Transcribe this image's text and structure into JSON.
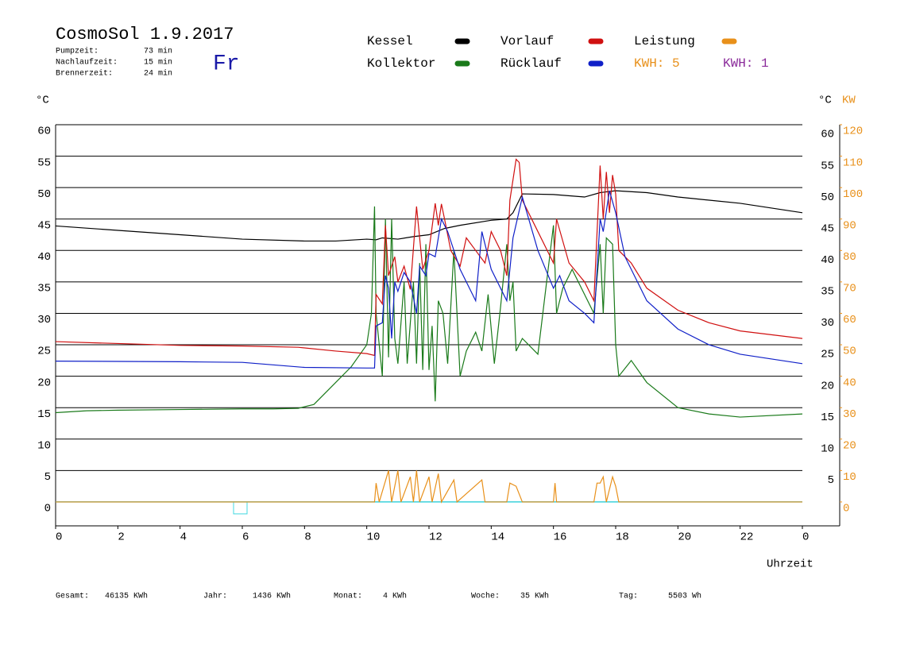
{
  "chart_data": {
    "type": "line",
    "title": "CosmoSol 1.9.2017",
    "weekday": "Fr",
    "info": [
      {
        "label": "Pumpzeit:",
        "value": "73 min"
      },
      {
        "label": "Nachlaufzeit:",
        "value": "15 min"
      },
      {
        "label": "Brennerzeit:",
        "value": "24 min"
      }
    ],
    "ylabel": "°C",
    "y2label": "KW",
    "xlabel": "Uhrzeit",
    "kwh_labels": [
      {
        "text": "KWH: 5",
        "color": "#e8901a"
      },
      {
        "text": "KWH: 1",
        "color": "#8a2a9a"
      }
    ],
    "xlim": [
      0,
      25.2
    ],
    "ylim": [
      -3.8,
      60
    ],
    "y2lim": [
      -7.6,
      120
    ],
    "xticks": [
      0,
      2,
      4,
      6,
      8,
      10,
      12,
      14,
      16,
      18,
      20,
      22,
      {
        "value": 24,
        "label": "0"
      }
    ],
    "yticks": [
      0,
      5,
      10,
      15,
      20,
      25,
      30,
      35,
      40,
      45,
      50,
      55,
      60
    ],
    "y2ticks": [
      0,
      10,
      20,
      30,
      40,
      50,
      60,
      70,
      80,
      90,
      100,
      110,
      120
    ],
    "grid": true,
    "series": [
      {
        "name": "Kessel",
        "color": "#000000",
        "x": [
          0,
          2,
          4,
          6,
          8,
          9,
          10,
          10.3,
          10.5,
          11,
          11.5,
          12,
          12.5,
          13,
          14,
          14.5,
          14.7,
          15,
          16,
          17,
          17.5,
          18,
          19,
          20,
          22,
          24
        ],
        "values": [
          43.9,
          43.2,
          42.5,
          41.8,
          41.5,
          41.5,
          41.8,
          41.7,
          42.0,
          41.8,
          42.2,
          42.5,
          43.5,
          44.0,
          44.8,
          45.0,
          46.0,
          49.0,
          48.9,
          48.5,
          49.2,
          49.5,
          49.2,
          48.5,
          47.5,
          46.0
        ]
      },
      {
        "name": "Kollektor",
        "color": "#1a7a1a",
        "x": [
          0,
          1,
          2,
          4,
          6,
          7,
          7.8,
          8.3,
          9,
          9.5,
          10,
          10.15,
          10.25,
          10.3,
          10.5,
          10.6,
          10.7,
          10.8,
          10.9,
          11.0,
          11.2,
          11.3,
          11.5,
          11.6,
          11.7,
          11.8,
          11.9,
          12.0,
          12.1,
          12.2,
          12.3,
          12.45,
          12.6,
          12.8,
          13,
          13.2,
          13.5,
          13.7,
          13.9,
          14.1,
          14.3,
          14.5,
          14.6,
          14.7,
          14.8,
          15,
          15.5,
          16,
          16.1,
          16.3,
          16.6,
          17,
          17.3,
          17.5,
          17.6,
          17.7,
          17.9,
          18,
          18.1,
          18.5,
          19,
          20,
          21,
          22,
          24
        ],
        "values": [
          14.2,
          14.5,
          14.6,
          14.7,
          14.8,
          14.8,
          14.9,
          15.5,
          19,
          21.5,
          25,
          30,
          47,
          30,
          20,
          45,
          23,
          45,
          26,
          22,
          35,
          22,
          35,
          22,
          38,
          21,
          41,
          21,
          28,
          16,
          32,
          30,
          22,
          40,
          20,
          24,
          27,
          24,
          33,
          22,
          31,
          41,
          32,
          35,
          24,
          26,
          23.5,
          44,
          30,
          34,
          37,
          33,
          30,
          41,
          30,
          42,
          41,
          25,
          20,
          22.5,
          19,
          15,
          14,
          13.5,
          14.0
        ]
      },
      {
        "name": "Vorlauf",
        "color": "#d01010",
        "x": [
          0,
          2,
          4,
          6,
          7.8,
          9,
          10,
          10.25,
          10.3,
          10.5,
          10.6,
          10.7,
          10.9,
          11,
          11.2,
          11.4,
          11.6,
          11.8,
          12,
          12.2,
          12.3,
          12.4,
          12.5,
          12.7,
          13,
          13.2,
          13.5,
          13.8,
          14,
          14.3,
          14.5,
          14.6,
          14.8,
          14.9,
          15,
          15.5,
          16,
          16.1,
          16.5,
          17,
          17.3,
          17.5,
          17.6,
          17.7,
          17.8,
          17.9,
          18,
          18.1,
          18.5,
          19,
          20,
          21,
          22,
          24
        ],
        "values": [
          25.5,
          25.2,
          24.9,
          24.8,
          24.6,
          24.0,
          23.6,
          23.3,
          33.0,
          31.5,
          44.0,
          36,
          39,
          35,
          37.5,
          33.8,
          47,
          37,
          40,
          47.5,
          44,
          47.4,
          45,
          40,
          37.5,
          42,
          40,
          38,
          43,
          40,
          36,
          48,
          54.5,
          54,
          48,
          43,
          38,
          45,
          38,
          35,
          32,
          53.5,
          45,
          52.5,
          46,
          52,
          49,
          40,
          38,
          34,
          30.5,
          28.5,
          27.2,
          26.0
        ]
      },
      {
        "name": "Rücklauf",
        "color": "#1020c8",
        "x": [
          0,
          4,
          6,
          8,
          10,
          10.25,
          10.3,
          10.5,
          10.6,
          10.7,
          10.8,
          10.9,
          11,
          11.2,
          11.4,
          11.6,
          11.7,
          11.9,
          12,
          12.2,
          12.4,
          12.6,
          13,
          13.5,
          13.7,
          14,
          14.5,
          14.7,
          15,
          15.5,
          16,
          16.2,
          16.5,
          17,
          17.3,
          17.5,
          17.6,
          17.8,
          18,
          18.3,
          19,
          20,
          21,
          22,
          24
        ],
        "values": [
          22.4,
          22.3,
          22.2,
          21.4,
          21.3,
          21.3,
          28.0,
          28.5,
          36,
          34,
          26,
          35,
          33.5,
          36.5,
          35,
          30,
          37.5,
          36,
          39.5,
          39,
          45,
          43,
          37,
          32,
          43,
          37,
          32,
          42,
          48.5,
          40,
          34,
          36,
          32,
          30,
          28.5,
          45,
          43,
          49.5,
          46,
          39,
          32,
          27.5,
          25.0,
          23.5,
          22.0
        ]
      },
      {
        "name": "Leistung",
        "color": "#e8901a",
        "axis": "y2",
        "x": [
          0,
          9,
          10.25,
          10.3,
          10.4,
          10.7,
          10.8,
          11,
          11.1,
          11.4,
          11.5,
          11.6,
          11.7,
          12,
          12.1,
          12.3,
          12.4,
          12.8,
          12.9,
          13.7,
          13.8,
          14.5,
          14.6,
          14.8,
          15,
          16,
          16.05,
          16.1,
          17.3,
          17.4,
          17.5,
          17.6,
          17.7,
          17.9,
          18,
          18.1,
          24
        ],
        "values": [
          0,
          0,
          0,
          6,
          0,
          10,
          0,
          10,
          0,
          8,
          0,
          10,
          0,
          8,
          0,
          9,
          0,
          7,
          0,
          7,
          0,
          0,
          6,
          5,
          0,
          0,
          6,
          0,
          0,
          6,
          6,
          8,
          0,
          8,
          5,
          0,
          0
        ]
      }
    ],
    "footer": [
      {
        "label": "Gesamt:",
        "value": "46135 KWh"
      },
      {
        "label": "Jahr:",
        "value": "1436 KWh"
      },
      {
        "label": "Monat:",
        "value": "4 KWh"
      },
      {
        "label": "Woche:",
        "value": "35 KWh"
      },
      {
        "label": "Tag:",
        "value": "5503 Wh"
      }
    ]
  }
}
